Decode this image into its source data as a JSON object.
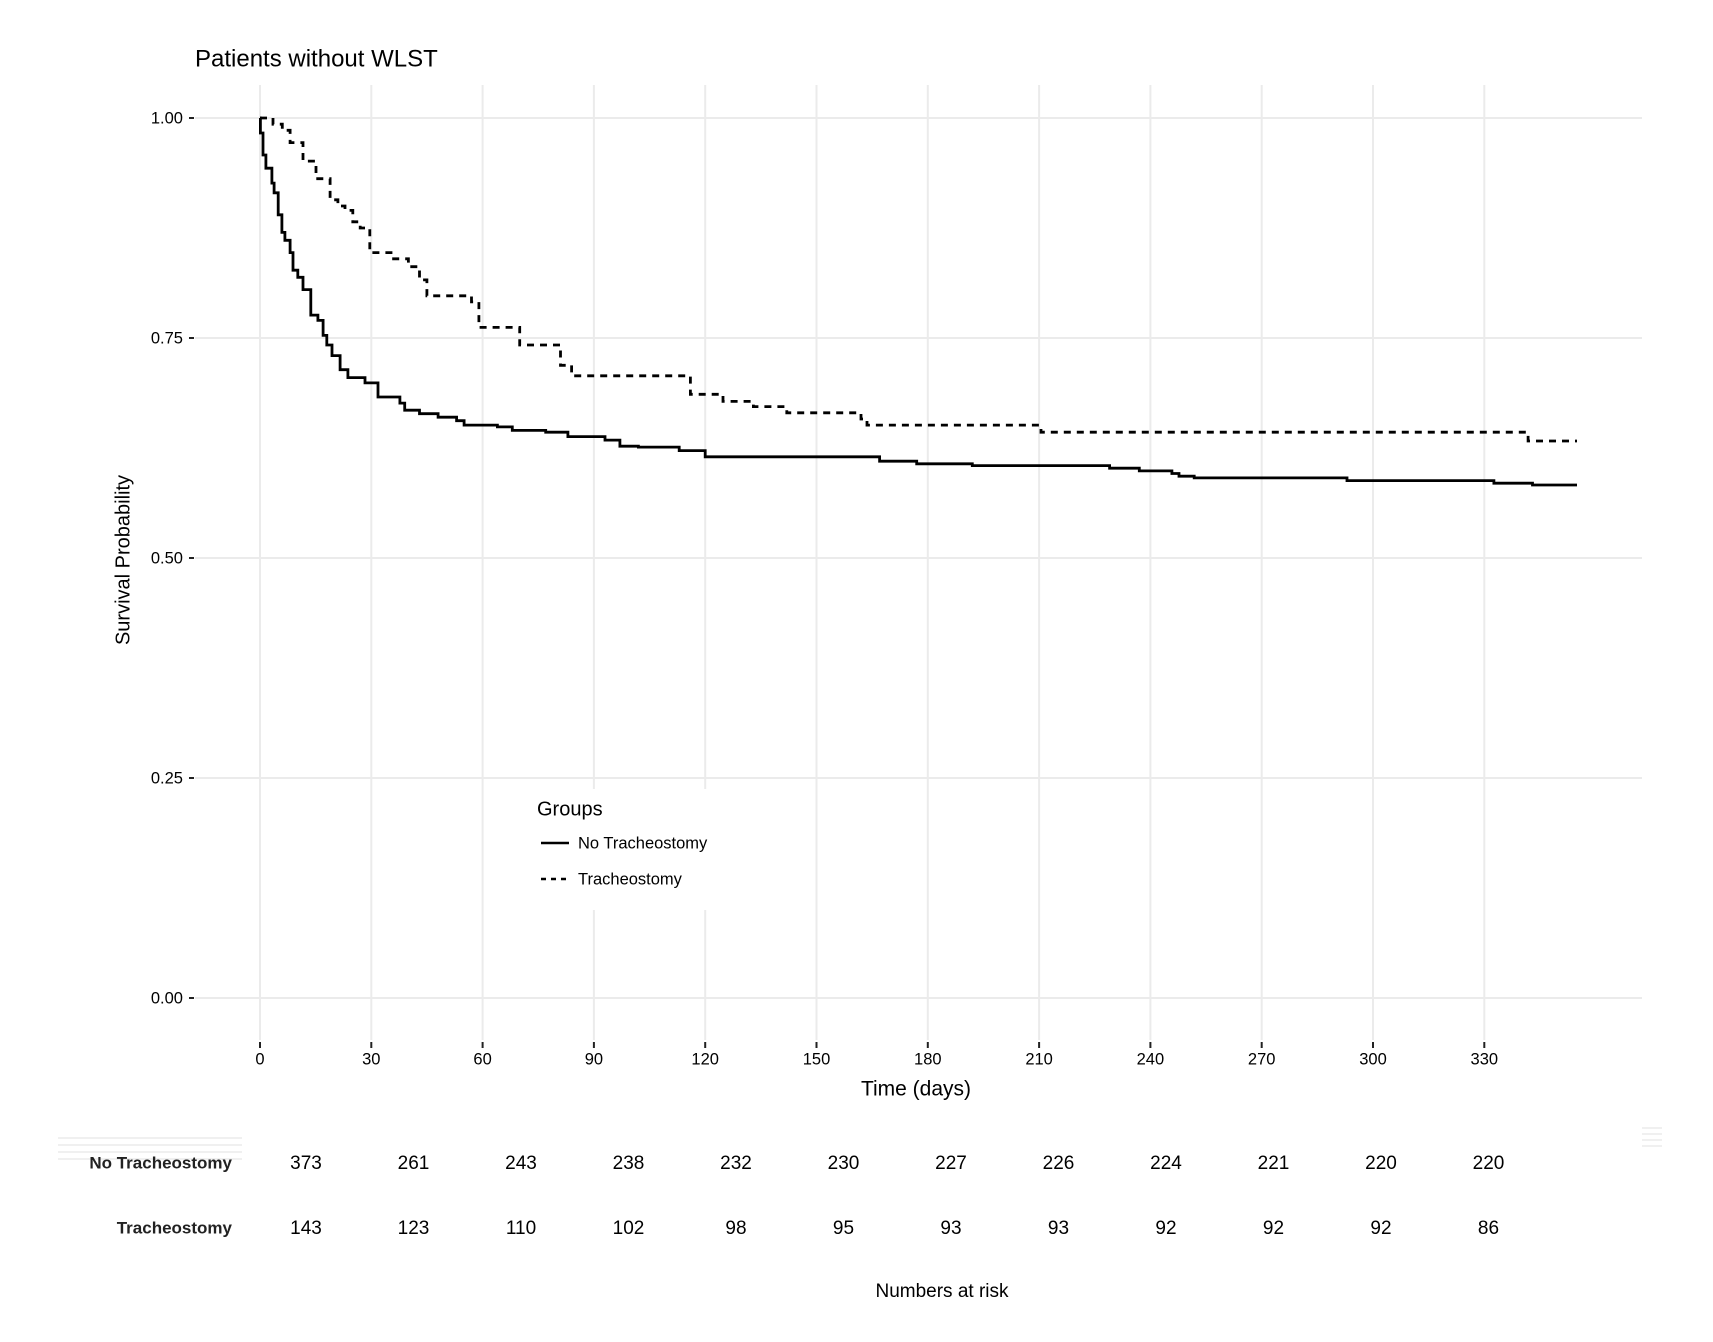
{
  "chart_data": {
    "type": "line",
    "subtype": "kaplan-meier step",
    "title": "Patients without WLST",
    "xlabel": "Time (days)",
    "ylabel": "Survival Probability",
    "xlim": [
      0,
      360
    ],
    "ylim": [
      0,
      1
    ],
    "x_ticks": [
      0,
      30,
      60,
      90,
      120,
      150,
      180,
      210,
      240,
      270,
      300,
      330
    ],
    "x_tick_labels": [
      "0",
      "30",
      "60",
      "90",
      "120",
      "150",
      "180",
      "210",
      "240",
      "270",
      "300",
      "330"
    ],
    "y_ticks": [
      0,
      0.25,
      0.5,
      0.75,
      1.0
    ],
    "y_tick_labels": [
      "0.00",
      "0.25",
      "0.50",
      "0.75",
      "1.00"
    ],
    "grid": true,
    "legend": {
      "title": "Groups",
      "placement": "center-left inside plot",
      "entries": [
        {
          "label": "No Tracheostomy",
          "line_style": "solid"
        },
        {
          "label": "Tracheostomy",
          "line_style": "dashed"
        }
      ]
    },
    "series": [
      {
        "name": "No Tracheostomy",
        "line_style": "solid",
        "color": "#000000",
        "steps": [
          [
            0,
            1.0
          ],
          [
            0.1,
            0.983
          ],
          [
            0.8,
            0.958
          ],
          [
            1.6,
            0.943
          ],
          [
            3.2,
            0.926
          ],
          [
            3.8,
            0.915
          ],
          [
            4.9,
            0.89
          ],
          [
            5.9,
            0.87
          ],
          [
            6.7,
            0.861
          ],
          [
            8.1,
            0.847
          ],
          [
            8.9,
            0.827
          ],
          [
            10.2,
            0.819
          ],
          [
            11.6,
            0.805
          ],
          [
            13.7,
            0.776
          ],
          [
            15.6,
            0.77
          ],
          [
            17.0,
            0.753
          ],
          [
            18.0,
            0.742
          ],
          [
            19.4,
            0.73
          ],
          [
            21.6,
            0.714
          ],
          [
            23.7,
            0.705
          ],
          [
            28.3,
            0.699
          ],
          [
            31.8,
            0.683
          ],
          [
            37.7,
            0.676
          ],
          [
            39,
            0.668
          ],
          [
            43,
            0.664
          ],
          [
            48,
            0.66
          ],
          [
            53,
            0.656
          ],
          [
            55,
            0.651
          ],
          [
            64,
            0.649
          ],
          [
            68,
            0.645
          ],
          [
            77,
            0.643
          ],
          [
            83,
            0.638
          ],
          [
            93,
            0.634
          ],
          [
            97,
            0.627
          ],
          [
            102,
            0.626
          ],
          [
            113,
            0.622
          ],
          [
            120,
            0.615
          ],
          [
            167,
            0.61
          ],
          [
            177,
            0.607
          ],
          [
            192,
            0.605
          ],
          [
            229,
            0.602
          ],
          [
            237,
            0.599
          ],
          [
            245.8,
            0.596
          ],
          [
            247.7,
            0.593
          ],
          [
            251.8,
            0.591
          ],
          [
            293,
            0.588
          ],
          [
            332.6,
            0.585
          ],
          [
            343,
            0.583
          ],
          [
            355,
            0.583
          ]
        ]
      },
      {
        "name": "Tracheostomy",
        "line_style": "dashed",
        "color": "#000000",
        "steps": [
          [
            0,
            1.0
          ],
          [
            3.5,
            0.993
          ],
          [
            6,
            0.986
          ],
          [
            8.1,
            0.972
          ],
          [
            11.6,
            0.951
          ],
          [
            15.1,
            0.931
          ],
          [
            18.9,
            0.907
          ],
          [
            21,
            0.9
          ],
          [
            22.9,
            0.895
          ],
          [
            25,
            0.882
          ],
          [
            27,
            0.875
          ],
          [
            29.6,
            0.847
          ],
          [
            36,
            0.84
          ],
          [
            40,
            0.831
          ],
          [
            43,
            0.816
          ],
          [
            45,
            0.798
          ],
          [
            57,
            0.791
          ],
          [
            59,
            0.762
          ],
          [
            70,
            0.742
          ],
          [
            81,
            0.719
          ],
          [
            84,
            0.707
          ],
          [
            116,
            0.686
          ],
          [
            124.8,
            0.678
          ],
          [
            133,
            0.672
          ],
          [
            142,
            0.665
          ],
          [
            162,
            0.658
          ],
          [
            163.6,
            0.651
          ],
          [
            210.5,
            0.643
          ],
          [
            341.8,
            0.633
          ],
          [
            355,
            0.633
          ]
        ]
      }
    ],
    "risk_table": {
      "title": "Numbers at risk",
      "time_points": [
        0,
        30,
        60,
        90,
        120,
        150,
        180,
        210,
        240,
        270,
        300,
        330
      ],
      "rows": [
        {
          "label": "No Tracheostomy",
          "values": [
            "373",
            "261",
            "243",
            "238",
            "232",
            "230",
            "227",
            "226",
            "224",
            "221",
            "220",
            "220"
          ]
        },
        {
          "label": "Tracheostomy",
          "values": [
            "143",
            "123",
            "110",
            "102",
            "98",
            "95",
            "93",
            "93",
            "92",
            "92",
            "92",
            "86"
          ]
        }
      ]
    }
  }
}
